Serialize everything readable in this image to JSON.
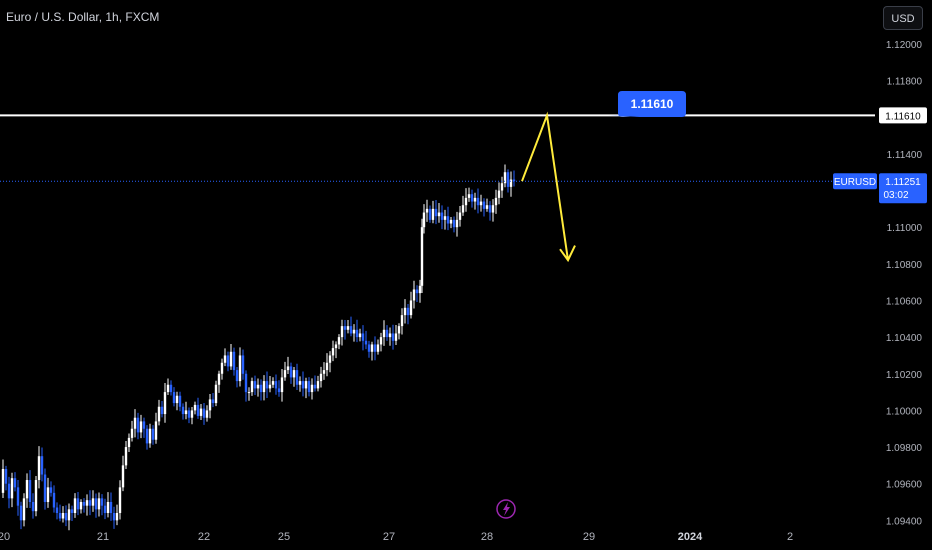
{
  "header": {
    "title": "Euro / U.S. Dollar, 1h, FXCM",
    "currency_button": "USD"
  },
  "colors": {
    "up": "#ffffff",
    "down": "#2962ff",
    "level_line": "#ffffff",
    "arrow": "#ffeb3b",
    "callout_bg": "#2962ff",
    "current_line": "#2962ff",
    "event_icon": "#9c27b0"
  },
  "icons": {
    "event": "lightning-icon"
  },
  "chart_data": {
    "type": "candlestick",
    "title": "Euro / U.S. Dollar, 1h, FXCM",
    "y_ticks": [
      "1.12000",
      "1.11800",
      "1.11400",
      "1.11000",
      "1.10800",
      "1.10600",
      "1.10400",
      "1.10200",
      "1.10000",
      "1.09800",
      "1.09600",
      "1.09400"
    ],
    "ylim": [
      1.0938,
      1.1224
    ],
    "x_labels": [
      {
        "label": "20",
        "bold": false
      },
      {
        "label": "21",
        "bold": false
      },
      {
        "label": "22",
        "bold": false
      },
      {
        "label": "25",
        "bold": false
      },
      {
        "label": "27",
        "bold": false
      },
      {
        "label": "28",
        "bold": false
      },
      {
        "label": "29",
        "bold": false
      },
      {
        "label": "2024",
        "bold": true
      },
      {
        "label": "2",
        "bold": false
      }
    ],
    "horizontal_level": 1.1161,
    "level_label": "1.11610",
    "callout_label": "1.11610",
    "current_symbol": "EURUSD",
    "current_price": 1.11251,
    "current_price_label": "1.11251",
    "countdown": "03:02",
    "close_path": [
      [
        0,
        1.0955
      ],
      [
        3,
        1.0968
      ],
      [
        6,
        1.096
      ],
      [
        9,
        1.0952
      ],
      [
        12,
        1.0963
      ],
      [
        15,
        1.0958
      ],
      [
        18,
        1.0948
      ],
      [
        21,
        1.094
      ],
      [
        24,
        1.0952
      ],
      [
        27,
        1.0962
      ],
      [
        30,
        1.095
      ],
      [
        33,
        1.0945
      ],
      [
        36,
        1.0962
      ],
      [
        39,
        1.0975
      ],
      [
        42,
        1.0965
      ],
      [
        45,
        1.095
      ],
      [
        48,
        1.0958
      ],
      [
        51,
        1.0955
      ],
      [
        54,
        1.0947
      ],
      [
        57,
        1.0944
      ],
      [
        60,
        1.0941
      ],
      [
        63,
        1.0944
      ],
      [
        66,
        1.094
      ],
      [
        69,
        1.0946
      ],
      [
        72,
        1.0944
      ],
      [
        75,
        1.0952
      ],
      [
        78,
        1.0946
      ],
      [
        81,
        1.095
      ],
      [
        84,
        1.0948
      ],
      [
        87,
        1.0951
      ],
      [
        90,
        1.0948
      ],
      [
        93,
        1.0952
      ],
      [
        96,
        1.0946
      ],
      [
        99,
        1.0952
      ],
      [
        102,
        1.0948
      ],
      [
        105,
        1.0944
      ],
      [
        108,
        1.095
      ],
      [
        111,
        1.0944
      ],
      [
        114,
        1.094
      ],
      [
        117,
        1.0944
      ],
      [
        120,
        1.0958
      ],
      [
        123,
        1.097
      ],
      [
        126,
        1.098
      ],
      [
        129,
        1.0985
      ],
      [
        132,
        1.099
      ],
      [
        135,
        1.0996
      ],
      [
        138,
        1.0988
      ],
      [
        141,
        1.0994
      ],
      [
        144,
        1.099
      ],
      [
        147,
        1.0982
      ],
      [
        150,
        1.099
      ],
      [
        153,
        1.0984
      ],
      [
        156,
        1.0994
      ],
      [
        159,
        1.1002
      ],
      [
        162,
        1.0998
      ],
      [
        165,
        1.101
      ],
      [
        168,
        1.1014
      ],
      [
        171,
        1.101
      ],
      [
        174,
        1.1004
      ],
      [
        177,
        1.1008
      ],
      [
        180,
        1.1002
      ],
      [
        183,
        1.0998
      ],
      [
        186,
        1.1
      ],
      [
        189,
        1.0996
      ],
      [
        192,
        1.1
      ],
      [
        195,
        1.1003
      ],
      [
        198,
        1.0997
      ],
      [
        201,
        1.1001
      ],
      [
        204,
        1.0996
      ],
      [
        207,
        1.1
      ],
      [
        210,
        1.1006
      ],
      [
        213,
        1.1004
      ],
      [
        216,
        1.1014
      ],
      [
        219,
        1.102
      ],
      [
        222,
        1.1026
      ],
      [
        225,
        1.103
      ],
      [
        228,
        1.1024
      ],
      [
        231,
        1.1032
      ],
      [
        234,
        1.1022
      ],
      [
        237,
        1.1016
      ],
      [
        240,
        1.103
      ],
      [
        243,
        1.102
      ],
      [
        246,
        1.101
      ],
      [
        249,
        1.101
      ],
      [
        252,
        1.1016
      ],
      [
        255,
        1.1012
      ],
      [
        258,
        1.1014
      ],
      [
        261,
        1.101
      ],
      [
        264,
        1.1016
      ],
      [
        267,
        1.1012
      ],
      [
        270,
        1.1014
      ],
      [
        273,
        1.1016
      ],
      [
        276,
        1.1012
      ],
      [
        279,
        1.101
      ],
      [
        282,
        1.1018
      ],
      [
        285,
        1.1022
      ],
      [
        288,
        1.1024
      ],
      [
        291,
        1.1018
      ],
      [
        294,
        1.1022
      ],
      [
        297,
        1.1014
      ],
      [
        300,
        1.1016
      ],
      [
        303,
        1.1012
      ],
      [
        306,
        1.1016
      ],
      [
        309,
        1.101
      ],
      [
        312,
        1.1014
      ],
      [
        315,
        1.1012
      ],
      [
        318,
        1.1016
      ],
      [
        321,
        1.102
      ],
      [
        324,
        1.1022
      ],
      [
        327,
        1.1026
      ],
      [
        330,
        1.103
      ],
      [
        333,
        1.1034
      ],
      [
        336,
        1.1036
      ],
      [
        339,
        1.104
      ],
      [
        342,
        1.1046
      ],
      [
        345,
        1.1044
      ],
      [
        348,
        1.1046
      ],
      [
        351,
        1.1042
      ],
      [
        354,
        1.1044
      ],
      [
        357,
        1.104
      ],
      [
        360,
        1.1042
      ],
      [
        363,
        1.1038
      ],
      [
        366,
        1.1036
      ],
      [
        369,
        1.1032
      ],
      [
        372,
        1.1036
      ],
      [
        375,
        1.1032
      ],
      [
        378,
        1.1036
      ],
      [
        381,
        1.104
      ],
      [
        384,
        1.1044
      ],
      [
        387,
        1.104
      ],
      [
        390,
        1.1042
      ],
      [
        393,
        1.1038
      ],
      [
        396,
        1.1042
      ],
      [
        399,
        1.1046
      ],
      [
        402,
        1.1052
      ],
      [
        405,
        1.1056
      ],
      [
        408,
        1.1052
      ],
      [
        411,
        1.106
      ],
      [
        414,
        1.1066
      ],
      [
        417,
        1.1064
      ],
      [
        420,
        1.1068
      ],
      [
        422,
        1.11
      ],
      [
        424,
        1.1108
      ],
      [
        427,
        1.111
      ],
      [
        430,
        1.1104
      ],
      [
        433,
        1.111
      ],
      [
        436,
        1.1106
      ],
      [
        439,
        1.1108
      ],
      [
        442,
        1.1104
      ],
      [
        445,
        1.1106
      ],
      [
        448,
        1.1102
      ],
      [
        451,
        1.1104
      ],
      [
        454,
        1.11
      ],
      [
        457,
        1.1104
      ],
      [
        460,
        1.1108
      ],
      [
        463,
        1.1112
      ],
      [
        466,
        1.1116
      ],
      [
        469,
        1.1118
      ],
      [
        472,
        1.1114
      ],
      [
        475,
        1.1116
      ],
      [
        478,
        1.1112
      ],
      [
        481,
        1.1114
      ],
      [
        484,
        1.111
      ],
      [
        487,
        1.1112
      ],
      [
        490,
        1.1108
      ],
      [
        493,
        1.1112
      ],
      [
        496,
        1.1116
      ],
      [
        499,
        1.112
      ],
      [
        502,
        1.1124
      ],
      [
        505,
        1.113
      ],
      [
        508,
        1.1122
      ],
      [
        511,
        1.1126
      ],
      [
        514,
        1.11251
      ]
    ],
    "arrow_path": [
      [
        522,
        1.11251
      ],
      [
        547,
        1.1161
      ],
      [
        568,
        1.1082
      ]
    ],
    "arrow_head": [
      [
        560,
        1.1088
      ],
      [
        568,
        1.1082
      ],
      [
        575,
        1.109
      ]
    ]
  }
}
